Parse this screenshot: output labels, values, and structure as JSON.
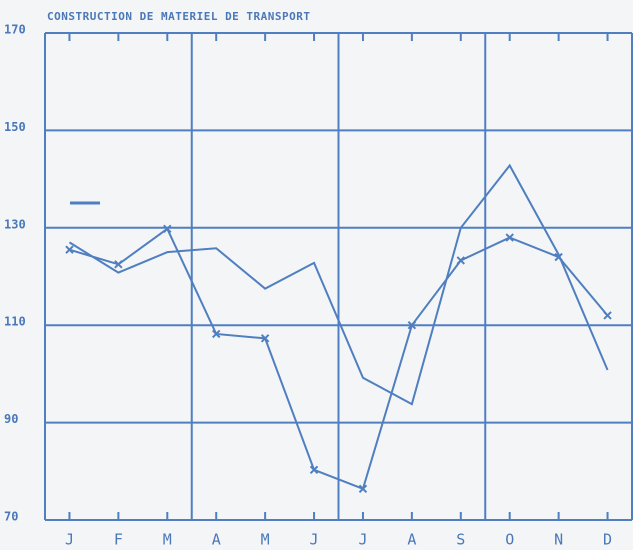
{
  "chart_data": {
    "type": "line",
    "title": "CONSTRUCTION DE MATERIEL DE TRANSPORT",
    "categories": [
      "J",
      "F",
      "M",
      "A",
      "M",
      "J",
      "J",
      "A",
      "S",
      "O",
      "N",
      "D"
    ],
    "series": [
      {
        "color": "#4f7fc0",
        "marker": "x",
        "values": [
          125.5,
          122.5,
          129.8,
          108.2,
          107.3,
          80.3,
          76.4,
          110,
          123.3,
          128,
          124,
          112
        ]
      },
      {
        "color": "#4f7fc0",
        "values": [
          127,
          120.8,
          125,
          125.8,
          117.5,
          122.8,
          99.2,
          93.8,
          130,
          142.8,
          124.5,
          100.8
        ]
      }
    ],
    "ylim": [
      70,
      170
    ],
    "yticks": [
      70,
      90,
      110,
      130,
      150,
      170
    ],
    "grid": true
  }
}
